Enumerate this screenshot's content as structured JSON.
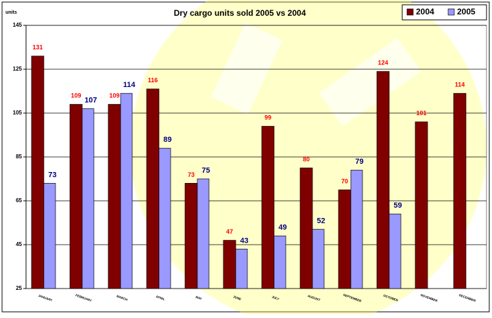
{
  "chart_data": {
    "type": "bar",
    "title": "Dry cargo units sold 2005 vs 2004",
    "y_label": "units",
    "categories": [
      "JANUARY",
      "FEBRUARY",
      "MARCH",
      "APRIL",
      "MAY",
      "JUNE",
      "JULY",
      "AUGUST",
      "SEPTEMBER",
      "OCTOBER",
      "NOVEMBER",
      "DECEMBER"
    ],
    "series": [
      {
        "name": "2004",
        "color": "#800000",
        "label_color": "#ff0000",
        "values": [
          131,
          109,
          109,
          116,
          73,
          47,
          99,
          80,
          70,
          124,
          101,
          114
        ]
      },
      {
        "name": "2005",
        "color": "#9999ff",
        "label_color": "#000080",
        "values": [
          73,
          107,
          114,
          89,
          75,
          43,
          49,
          52,
          79,
          59,
          null,
          null
        ]
      }
    ],
    "ylim": [
      25,
      145
    ],
    "yticks": [
      25,
      45,
      65,
      85,
      105,
      125,
      145
    ],
    "grid": true,
    "legend": "top-right"
  }
}
